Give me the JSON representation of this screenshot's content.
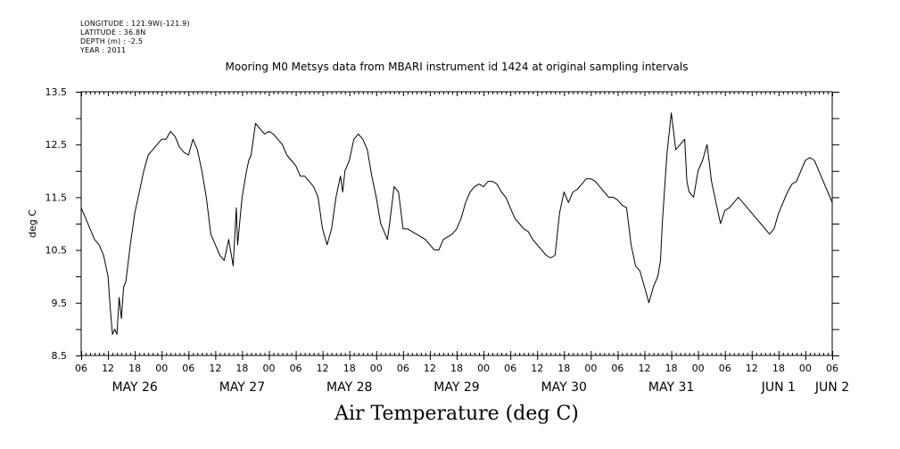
{
  "header": {
    "longitude": "LONGITUDE : 121.9W(-121.9)",
    "latitude": "LATITUDE : 36.8N",
    "depth": "DEPTH (m) : -2.5",
    "year": "YEAR : 2011"
  },
  "chart_data": {
    "type": "line",
    "title": "Mooring M0 Metsys data from MBARI instrument id 1424 at original sampling intervals",
    "variable_label": "Air Temperature (deg C)",
    "ylabel": "deg C",
    "ylim": [
      8.5,
      13.5
    ],
    "y_ticks": [
      "8.5",
      "9.5",
      "10.5",
      "11.5",
      "12.5",
      "13.5"
    ],
    "x_range_hours": [
      0,
      168
    ],
    "hour_tick_labels": [
      "06",
      "12",
      "18",
      "00",
      "06",
      "12",
      "18",
      "00",
      "06",
      "12",
      "18",
      "00",
      "06",
      "12",
      "18",
      "00",
      "06",
      "12",
      "18",
      "00",
      "06",
      "12",
      "18",
      "00",
      "06",
      "12",
      "18",
      "00",
      "06"
    ],
    "day_labels": [
      {
        "label": "MAY 26",
        "hour": 12
      },
      {
        "label": "MAY 27",
        "hour": 36
      },
      {
        "label": "MAY 28",
        "hour": 60
      },
      {
        "label": "MAY 29",
        "hour": 84
      },
      {
        "label": "MAY 30",
        "hour": 108
      },
      {
        "label": "MAY 31",
        "hour": 132
      },
      {
        "label": "JUN  1",
        "hour": 156
      },
      {
        "label": "JUN  2",
        "hour": 168
      }
    ],
    "grid": false,
    "series": [
      {
        "x": [
          0,
          1,
          2,
          3,
          4,
          5,
          6,
          6.5,
          7,
          7.5,
          8,
          8.5,
          9,
          9.5,
          10,
          11,
          12,
          13,
          14,
          15,
          16,
          17,
          18,
          19,
          20,
          21,
          22,
          23,
          24,
          25,
          26,
          27,
          28,
          29,
          30,
          31,
          32,
          33,
          34,
          34.7,
          35,
          36,
          37,
          37.5,
          38,
          39,
          40,
          41,
          42,
          43,
          44,
          45,
          46,
          47,
          48,
          49,
          50,
          51,
          52,
          53,
          54,
          55,
          56,
          57,
          58,
          58.5,
          59,
          60,
          61,
          62,
          63,
          64,
          65,
          66,
          67,
          68,
          68.5,
          69,
          70,
          71,
          72,
          73,
          74,
          75,
          76,
          77,
          78,
          79,
          80,
          81,
          82,
          83,
          84,
          85,
          86,
          87,
          88,
          89,
          90,
          91,
          92,
          93,
          94,
          95,
          96,
          97,
          98,
          99,
          100,
          101,
          102,
          103,
          104,
          105,
          106,
          107,
          108,
          109,
          110,
          111,
          112,
          113,
          114,
          115,
          116,
          117,
          118,
          119,
          120,
          121,
          122,
          123,
          124,
          125,
          126,
          127,
          128,
          129,
          129.6,
          130,
          131,
          132,
          133,
          134,
          135,
          135.5,
          136,
          137,
          138,
          139,
          140,
          141,
          142,
          143,
          144,
          145,
          146,
          147,
          148,
          149,
          150,
          151,
          152,
          153,
          154,
          155,
          156,
          157,
          158,
          159,
          160,
          161,
          162,
          163,
          164,
          165,
          166,
          167,
          168
        ],
        "y": [
          11.3,
          11.1,
          10.9,
          10.7,
          10.6,
          10.4,
          10.0,
          9.4,
          8.9,
          9.0,
          8.9,
          9.6,
          9.2,
          9.8,
          9.9,
          10.6,
          11.2,
          11.6,
          12.0,
          12.3,
          12.4,
          12.5,
          12.6,
          12.6,
          12.75,
          12.65,
          12.45,
          12.35,
          12.3,
          12.6,
          12.4,
          12.0,
          11.5,
          10.8,
          10.6,
          10.4,
          10.3,
          10.7,
          10.2,
          11.3,
          10.6,
          11.5,
          12.0,
          12.2,
          12.3,
          12.9,
          12.8,
          12.7,
          12.75,
          12.7,
          12.6,
          12.5,
          12.3,
          12.2,
          12.1,
          11.9,
          11.9,
          11.8,
          11.7,
          11.5,
          10.9,
          10.6,
          10.9,
          11.5,
          11.9,
          11.6,
          12.0,
          12.2,
          12.6,
          12.7,
          12.6,
          12.4,
          11.9,
          11.5,
          11.0,
          10.8,
          10.7,
          11.0,
          11.7,
          11.6,
          10.9,
          10.9,
          10.85,
          10.8,
          10.75,
          10.7,
          10.6,
          10.5,
          10.5,
          10.7,
          10.75,
          10.8,
          10.9,
          11.1,
          11.4,
          11.6,
          11.7,
          11.75,
          11.7,
          11.8,
          11.8,
          11.75,
          11.6,
          11.5,
          11.3,
          11.1,
          11.0,
          10.9,
          10.85,
          10.7,
          10.6,
          10.5,
          10.4,
          10.35,
          10.4,
          11.2,
          11.6,
          11.4,
          11.6,
          11.65,
          11.75,
          11.85,
          11.85,
          11.8,
          11.7,
          11.6,
          11.5,
          11.5,
          11.45,
          11.35,
          11.3,
          10.6,
          10.2,
          10.1,
          9.8,
          9.5,
          9.8,
          10.0,
          10.3,
          11.0,
          12.3,
          13.1,
          12.4,
          12.5,
          12.6,
          11.8,
          11.6,
          11.5,
          12.0,
          12.2,
          12.5,
          11.8,
          11.4,
          11.0,
          11.25,
          11.3,
          11.4,
          11.5,
          11.4,
          11.3,
          11.2,
          11.1,
          11.0,
          10.9,
          10.8,
          10.9,
          11.2,
          11.4,
          11.6,
          11.75,
          11.8,
          12.0,
          12.2,
          12.25,
          12.2,
          12.0,
          11.8,
          11.6,
          11.4
        ]
      }
    ]
  }
}
